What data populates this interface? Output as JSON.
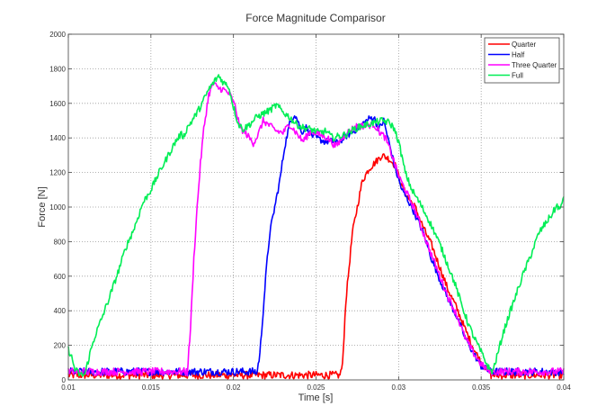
{
  "chart_data": {
    "type": "line",
    "title": "Force Magnitude Comparisor",
    "xlabel": "Time [s]",
    "ylabel": "Force [N]",
    "xlim": [
      0.01,
      0.04
    ],
    "ylim": [
      0,
      2000
    ],
    "xticks": [
      0.01,
      0.015,
      0.02,
      0.025,
      0.03,
      0.035,
      0.04
    ],
    "xtick_labels": [
      "0.01",
      "0.015",
      "0.02",
      "0.025",
      "0.03",
      "0.035",
      "0.04"
    ],
    "yticks": [
      0,
      200,
      400,
      600,
      800,
      1000,
      1200,
      1400,
      1600,
      1800,
      2000
    ],
    "ytick_labels": [
      "0",
      "200",
      "400",
      "600",
      "800",
      "1000",
      "1200",
      "1400",
      "1600",
      "1800",
      "2000"
    ],
    "grid": true,
    "legend_position": "upper right",
    "series": [
      {
        "name": "Quarter",
        "color": "#ff0000",
        "points": [
          [
            0.01,
            30
          ],
          [
            0.0105,
            20
          ],
          [
            0.011,
            0
          ],
          [
            0.012,
            30
          ],
          [
            0.013,
            10
          ],
          [
            0.014,
            40
          ],
          [
            0.015,
            20
          ],
          [
            0.016,
            0
          ],
          [
            0.017,
            30
          ],
          [
            0.018,
            10
          ],
          [
            0.019,
            40
          ],
          [
            0.02,
            10
          ],
          [
            0.021,
            30
          ],
          [
            0.022,
            0
          ],
          [
            0.023,
            40
          ],
          [
            0.024,
            10
          ],
          [
            0.025,
            30
          ],
          [
            0.026,
            10
          ],
          [
            0.0264,
            20
          ],
          [
            0.0266,
            80
          ],
          [
            0.0268,
            450
          ],
          [
            0.027,
            650
          ],
          [
            0.0272,
            850
          ],
          [
            0.0275,
            1000
          ],
          [
            0.0278,
            1150
          ],
          [
            0.0282,
            1220
          ],
          [
            0.0286,
            1260
          ],
          [
            0.029,
            1300
          ],
          [
            0.0294,
            1280
          ],
          [
            0.0298,
            1240
          ],
          [
            0.0302,
            1120
          ],
          [
            0.0306,
            1050
          ],
          [
            0.031,
            1000
          ],
          [
            0.0315,
            880
          ],
          [
            0.032,
            780
          ],
          [
            0.0325,
            650
          ],
          [
            0.033,
            520
          ],
          [
            0.0335,
            420
          ],
          [
            0.034,
            300
          ],
          [
            0.0345,
            190
          ],
          [
            0.035,
            100
          ],
          [
            0.0356,
            40
          ],
          [
            0.036,
            20
          ],
          [
            0.037,
            40
          ],
          [
            0.038,
            10
          ],
          [
            0.039,
            40
          ],
          [
            0.04,
            20
          ]
        ],
        "noise_until": 0.0264,
        "noise_from": 0.0356
      },
      {
        "name": "Half",
        "color": "#0000ff",
        "points": [
          [
            0.01,
            110
          ],
          [
            0.0105,
            60
          ],
          [
            0.011,
            40
          ],
          [
            0.012,
            50
          ],
          [
            0.013,
            40
          ],
          [
            0.014,
            60
          ],
          [
            0.015,
            50
          ],
          [
            0.016,
            40
          ],
          [
            0.017,
            60
          ],
          [
            0.018,
            30
          ],
          [
            0.019,
            40
          ],
          [
            0.02,
            30
          ],
          [
            0.021,
            40
          ],
          [
            0.0214,
            30
          ],
          [
            0.0216,
            150
          ],
          [
            0.0218,
            400
          ],
          [
            0.022,
            650
          ],
          [
            0.0222,
            850
          ],
          [
            0.0225,
            1000
          ],
          [
            0.0228,
            1150
          ],
          [
            0.0231,
            1350
          ],
          [
            0.0234,
            1480
          ],
          [
            0.0237,
            1540
          ],
          [
            0.0239,
            1500
          ],
          [
            0.0241,
            1430
          ],
          [
            0.0244,
            1460
          ],
          [
            0.0247,
            1420
          ],
          [
            0.025,
            1400
          ],
          [
            0.0255,
            1380
          ],
          [
            0.026,
            1380
          ],
          [
            0.0263,
            1370
          ],
          [
            0.0268,
            1410
          ],
          [
            0.0273,
            1440
          ],
          [
            0.0278,
            1480
          ],
          [
            0.0282,
            1510
          ],
          [
            0.0285,
            1520
          ],
          [
            0.0288,
            1450
          ],
          [
            0.0291,
            1500
          ],
          [
            0.0294,
            1380
          ],
          [
            0.0298,
            1220
          ],
          [
            0.0302,
            1100
          ],
          [
            0.0308,
            1000
          ],
          [
            0.0315,
            850
          ],
          [
            0.032,
            700
          ],
          [
            0.0325,
            580
          ],
          [
            0.033,
            470
          ],
          [
            0.0335,
            370
          ],
          [
            0.034,
            250
          ],
          [
            0.0345,
            160
          ],
          [
            0.035,
            80
          ],
          [
            0.0355,
            50
          ],
          [
            0.036,
            40
          ],
          [
            0.037,
            40
          ],
          [
            0.038,
            40
          ],
          [
            0.039,
            60
          ],
          [
            0.04,
            40
          ]
        ],
        "noise_until": 0.0214,
        "noise_from": 0.0355
      },
      {
        "name": "Three Quarter",
        "color": "#ff00ff",
        "points": [
          [
            0.01,
            80
          ],
          [
            0.0103,
            60
          ],
          [
            0.0107,
            40
          ],
          [
            0.011,
            40
          ],
          [
            0.012,
            30
          ],
          [
            0.013,
            40
          ],
          [
            0.014,
            50
          ],
          [
            0.015,
            40
          ],
          [
            0.016,
            50
          ],
          [
            0.017,
            40
          ],
          [
            0.0172,
            40
          ],
          [
            0.0174,
            300
          ],
          [
            0.0176,
            700
          ],
          [
            0.0178,
            1000
          ],
          [
            0.018,
            1250
          ],
          [
            0.0182,
            1450
          ],
          [
            0.0185,
            1650
          ],
          [
            0.0188,
            1720
          ],
          [
            0.019,
            1690
          ],
          [
            0.0194,
            1680
          ],
          [
            0.0198,
            1650
          ],
          [
            0.0201,
            1580
          ],
          [
            0.0204,
            1460
          ],
          [
            0.0208,
            1420
          ],
          [
            0.0212,
            1370
          ],
          [
            0.0215,
            1420
          ],
          [
            0.0218,
            1500
          ],
          [
            0.0222,
            1470
          ],
          [
            0.0226,
            1440
          ],
          [
            0.023,
            1430
          ],
          [
            0.0234,
            1480
          ],
          [
            0.0238,
            1430
          ],
          [
            0.0242,
            1380
          ],
          [
            0.0247,
            1440
          ],
          [
            0.0252,
            1420
          ],
          [
            0.0257,
            1400
          ],
          [
            0.0262,
            1350
          ],
          [
            0.0266,
            1400
          ],
          [
            0.027,
            1440
          ],
          [
            0.0275,
            1470
          ],
          [
            0.028,
            1470
          ],
          [
            0.0285,
            1480
          ],
          [
            0.0288,
            1440
          ],
          [
            0.0292,
            1400
          ],
          [
            0.0296,
            1300
          ],
          [
            0.03,
            1180
          ],
          [
            0.0305,
            1080
          ],
          [
            0.031,
            980
          ],
          [
            0.0315,
            850
          ],
          [
            0.032,
            720
          ],
          [
            0.0325,
            600
          ],
          [
            0.033,
            480
          ],
          [
            0.0335,
            380
          ],
          [
            0.034,
            250
          ],
          [
            0.0345,
            160
          ],
          [
            0.035,
            90
          ],
          [
            0.0356,
            40
          ],
          [
            0.036,
            40
          ],
          [
            0.037,
            40
          ],
          [
            0.038,
            50
          ],
          [
            0.039,
            40
          ],
          [
            0.04,
            50
          ]
        ],
        "noise_until": 0.0172,
        "noise_from": 0.0356
      },
      {
        "name": "Full",
        "color": "#00ee55",
        "points": [
          [
            0.01,
            180
          ],
          [
            0.0102,
            130
          ],
          [
            0.0104,
            60
          ],
          [
            0.0107,
            30
          ],
          [
            0.011,
            30
          ],
          [
            0.0113,
            150
          ],
          [
            0.0116,
            250
          ],
          [
            0.012,
            350
          ],
          [
            0.0125,
            480
          ],
          [
            0.013,
            620
          ],
          [
            0.0135,
            770
          ],
          [
            0.014,
            880
          ],
          [
            0.0145,
            1020
          ],
          [
            0.015,
            1100
          ],
          [
            0.0155,
            1200
          ],
          [
            0.016,
            1290
          ],
          [
            0.0165,
            1380
          ],
          [
            0.0168,
            1420
          ],
          [
            0.017,
            1410
          ],
          [
            0.0172,
            1460
          ],
          [
            0.0175,
            1500
          ],
          [
            0.018,
            1580
          ],
          [
            0.0185,
            1680
          ],
          [
            0.0188,
            1720
          ],
          [
            0.0191,
            1760
          ],
          [
            0.0194,
            1720
          ],
          [
            0.0197,
            1700
          ],
          [
            0.02,
            1580
          ],
          [
            0.0203,
            1480
          ],
          [
            0.0206,
            1450
          ],
          [
            0.021,
            1480
          ],
          [
            0.0214,
            1520
          ],
          [
            0.0218,
            1540
          ],
          [
            0.0222,
            1560
          ],
          [
            0.0226,
            1590
          ],
          [
            0.023,
            1550
          ],
          [
            0.0234,
            1520
          ],
          [
            0.0238,
            1480
          ],
          [
            0.0242,
            1460
          ],
          [
            0.0247,
            1450
          ],
          [
            0.0252,
            1430
          ],
          [
            0.0256,
            1440
          ],
          [
            0.026,
            1400
          ],
          [
            0.0264,
            1410
          ],
          [
            0.0268,
            1420
          ],
          [
            0.0273,
            1450
          ],
          [
            0.0278,
            1470
          ],
          [
            0.0282,
            1480
          ],
          [
            0.0286,
            1490
          ],
          [
            0.029,
            1500
          ],
          [
            0.0294,
            1490
          ],
          [
            0.0297,
            1460
          ],
          [
            0.03,
            1380
          ],
          [
            0.0304,
            1200
          ],
          [
            0.0308,
            1100
          ],
          [
            0.0313,
            1020
          ],
          [
            0.0318,
            930
          ],
          [
            0.0322,
            850
          ],
          [
            0.0326,
            760
          ],
          [
            0.033,
            660
          ],
          [
            0.0334,
            560
          ],
          [
            0.0338,
            440
          ],
          [
            0.0342,
            330
          ],
          [
            0.0345,
            260
          ],
          [
            0.0348,
            200
          ],
          [
            0.0352,
            120
          ],
          [
            0.0355,
            60
          ],
          [
            0.0357,
            50
          ],
          [
            0.036,
            150
          ],
          [
            0.0363,
            260
          ],
          [
            0.0367,
            380
          ],
          [
            0.037,
            460
          ],
          [
            0.0375,
            600
          ],
          [
            0.038,
            720
          ],
          [
            0.0385,
            850
          ],
          [
            0.039,
            920
          ],
          [
            0.0393,
            960
          ],
          [
            0.0396,
            1010
          ],
          [
            0.0398,
            980
          ],
          [
            0.04,
            1070
          ]
        ],
        "noise_until": 0.0,
        "noise_from": 1.0
      }
    ]
  },
  "legend": {
    "items": [
      {
        "label": "Quarter",
        "color": "#ff0000"
      },
      {
        "label": "Half",
        "color": "#0000ff"
      },
      {
        "label": "Three Quarter",
        "color": "#ff00ff"
      },
      {
        "label": "Full",
        "color": "#00ee55"
      }
    ]
  }
}
